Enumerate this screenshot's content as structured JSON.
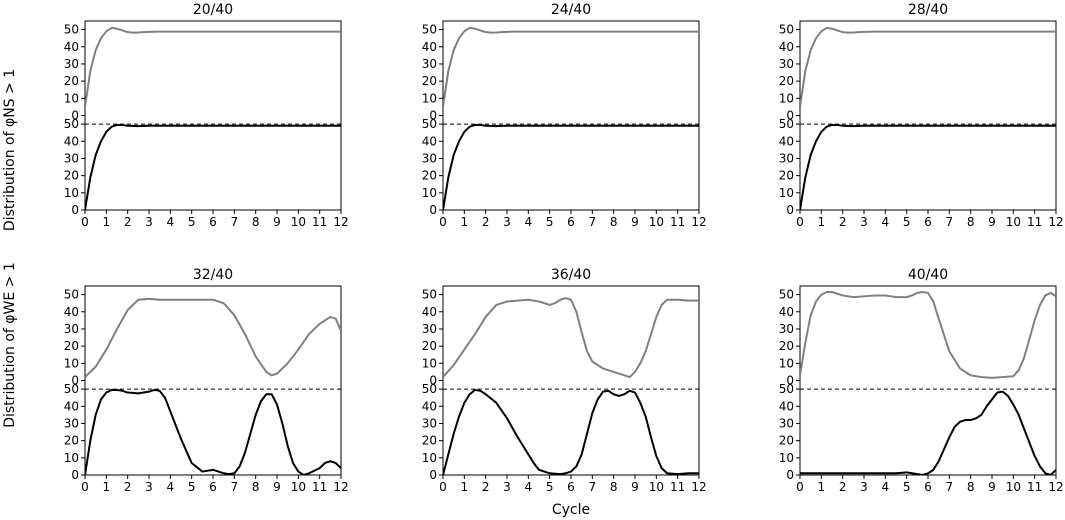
{
  "chart_data": {
    "type": "line",
    "xlabel": "Cycle",
    "ylabel_ns": "Distribution of φNS > 1",
    "ylabel_we": "Distribution of φWE > 1",
    "colors": {
      "ns_line": "#808080",
      "we_line": "#000000",
      "divider": "#000000"
    },
    "x_ticks": [
      0,
      1,
      2,
      3,
      4,
      5,
      6,
      7,
      8,
      9,
      10,
      11,
      12
    ],
    "y_ticks": [
      0,
      10,
      20,
      30,
      40,
      50
    ],
    "xlim": [
      0,
      12
    ],
    "ylim_each_half": [
      0,
      55
    ],
    "divider_value": 50,
    "panels": [
      {
        "title": "20/40",
        "ns": {
          "x": [
            0,
            0.25,
            0.5,
            0.75,
            1,
            1.25,
            1.5,
            1.75,
            2,
            2.25,
            2.5,
            2.75,
            3,
            3.5,
            4,
            5,
            6,
            7,
            8,
            9,
            10,
            11,
            12
          ],
          "y": [
            5,
            26,
            38,
            45,
            49,
            51,
            50.5,
            49.5,
            48.5,
            48.2,
            48.3,
            48.5,
            48.7,
            48.8,
            48.8,
            48.8,
            48.8,
            48.8,
            48.8,
            48.8,
            48.8,
            48.8,
            48.8
          ]
        },
        "we": {
          "x": [
            0,
            0.25,
            0.5,
            0.75,
            1,
            1.25,
            1.5,
            1.75,
            2,
            2.5,
            3,
            4,
            5,
            6,
            7,
            8,
            9,
            10,
            11,
            12
          ],
          "y": [
            0,
            19,
            32,
            40,
            45.5,
            48.5,
            49.5,
            49.5,
            49,
            48.8,
            49,
            49,
            49,
            49,
            49,
            49,
            49,
            49,
            49,
            49
          ]
        }
      },
      {
        "title": "24/40",
        "ns": {
          "x": [
            0,
            0.25,
            0.5,
            0.75,
            1,
            1.25,
            1.5,
            1.75,
            2,
            2.25,
            2.5,
            2.75,
            3,
            3.5,
            4,
            5,
            6,
            7,
            8,
            9,
            10,
            11,
            12
          ],
          "y": [
            5,
            26,
            38,
            45,
            49,
            51,
            50.5,
            49.5,
            48.5,
            48.2,
            48.3,
            48.5,
            48.7,
            48.8,
            48.8,
            48.8,
            48.8,
            48.8,
            48.8,
            48.8,
            48.8,
            48.8,
            48.8
          ]
        },
        "we": {
          "x": [
            0,
            0.25,
            0.5,
            0.75,
            1,
            1.25,
            1.5,
            1.75,
            2,
            2.5,
            3,
            4,
            5,
            6,
            7,
            8,
            9,
            10,
            11,
            12
          ],
          "y": [
            0,
            19,
            32,
            40,
            45.5,
            48.5,
            49.5,
            49.5,
            49,
            48.8,
            49,
            49,
            49,
            49,
            49,
            49,
            49,
            49,
            49,
            49
          ]
        }
      },
      {
        "title": "28/40",
        "ns": {
          "x": [
            0,
            0.25,
            0.5,
            0.75,
            1,
            1.25,
            1.5,
            1.75,
            2,
            2.25,
            2.5,
            2.75,
            3,
            3.5,
            4,
            5,
            6,
            7,
            8,
            9,
            10,
            11,
            12
          ],
          "y": [
            5,
            26,
            38,
            45,
            49,
            51,
            50.5,
            49.5,
            48.5,
            48.2,
            48.3,
            48.5,
            48.7,
            48.8,
            48.8,
            48.8,
            48.8,
            48.8,
            48.8,
            48.8,
            48.8,
            48.8,
            48.8
          ]
        },
        "we": {
          "x": [
            0,
            0.25,
            0.5,
            0.75,
            1,
            1.25,
            1.5,
            1.75,
            2,
            2.5,
            3,
            4,
            5,
            6,
            7,
            8,
            9,
            10,
            11,
            12
          ],
          "y": [
            0,
            19,
            32,
            40,
            45.5,
            48.5,
            49.5,
            49.5,
            49,
            48.8,
            49,
            49,
            49,
            49,
            49,
            49,
            49,
            49,
            49,
            49
          ]
        }
      },
      {
        "title": "32/40",
        "ns": {
          "x": [
            0,
            0.5,
            1,
            1.5,
            2,
            2.5,
            3,
            3.5,
            4,
            4.5,
            5,
            5.5,
            6,
            6.5,
            7,
            7.5,
            8,
            8.5,
            8.75,
            9,
            9.5,
            10,
            10.5,
            11,
            11.5,
            11.75,
            12
          ],
          "y": [
            2,
            8,
            18,
            30,
            41,
            47,
            47.5,
            47,
            47,
            47,
            47,
            47,
            47,
            45,
            38,
            27,
            14,
            5,
            3,
            4,
            10,
            18,
            27,
            33,
            37,
            36,
            29
          ]
        },
        "we": {
          "x": [
            0,
            0.25,
            0.5,
            0.75,
            1,
            1.25,
            1.5,
            1.75,
            2,
            2.5,
            3,
            3.25,
            3.5,
            3.75,
            4,
            4.5,
            5,
            5.5,
            6,
            6.25,
            6.5,
            6.75,
            7,
            7.25,
            7.5,
            7.75,
            8,
            8.25,
            8.5,
            8.75,
            9,
            9.25,
            9.5,
            9.75,
            10,
            10.25,
            10.5,
            11,
            11.25,
            11.5,
            11.75,
            12
          ],
          "y": [
            0,
            20,
            35,
            44,
            48,
            49.5,
            49.5,
            49,
            48,
            47.5,
            48.5,
            49.5,
            49,
            45,
            37,
            21,
            7,
            2,
            3,
            2,
            1,
            0.5,
            1,
            5,
            13,
            24,
            35,
            43,
            47,
            47,
            41,
            30,
            17,
            7,
            2,
            0,
            1,
            4,
            7,
            8,
            7,
            4
          ]
        }
      },
      {
        "title": "36/40",
        "ns": {
          "x": [
            0,
            0.5,
            1,
            1.5,
            2,
            2.5,
            3,
            3.5,
            4,
            4.5,
            5,
            5.25,
            5.5,
            5.75,
            6,
            6.25,
            6.5,
            6.75,
            7,
            7.5,
            8,
            8.5,
            8.75,
            9,
            9.25,
            9.5,
            9.75,
            10,
            10.25,
            10.5,
            11,
            11.5,
            12
          ],
          "y": [
            2,
            9,
            18,
            27,
            37,
            44,
            46,
            46.5,
            47,
            46,
            44,
            45,
            47,
            48,
            47,
            40,
            28,
            17,
            11,
            7,
            5,
            3,
            2,
            5,
            10,
            17,
            27,
            37,
            44,
            47,
            47,
            46.5,
            46.5
          ]
        },
        "we": {
          "x": [
            0,
            0.25,
            0.5,
            0.75,
            1,
            1.25,
            1.5,
            1.75,
            2,
            2.5,
            3,
            3.5,
            4,
            4.25,
            4.5,
            5,
            5.5,
            5.75,
            6,
            6.25,
            6.5,
            6.75,
            7,
            7.25,
            7.5,
            7.75,
            8,
            8.25,
            8.5,
            8.75,
            9,
            9.25,
            9.5,
            9.75,
            10,
            10.25,
            10.5,
            11,
            11.5,
            12
          ],
          "y": [
            0,
            12,
            24,
            34,
            42,
            47,
            49.5,
            49,
            47,
            42,
            33,
            22,
            12,
            7,
            3,
            1,
            0.5,
            1,
            2,
            5,
            12,
            24,
            36,
            44,
            48.5,
            49,
            47,
            46,
            47,
            49,
            48,
            42,
            34,
            22,
            11,
            4,
            1,
            0.5,
            1,
            1
          ]
        }
      },
      {
        "title": "40/40",
        "ns": {
          "x": [
            0,
            0.25,
            0.5,
            0.75,
            1,
            1.25,
            1.5,
            2,
            2.5,
            3,
            3.5,
            4,
            4.5,
            5,
            5.25,
            5.5,
            5.75,
            6,
            6.25,
            6.5,
            7,
            7.5,
            8,
            8.5,
            9,
            9.5,
            10,
            10.25,
            10.5,
            10.75,
            11,
            11.25,
            11.5,
            11.75,
            12
          ],
          "y": [
            3,
            22,
            38,
            46,
            50,
            51.5,
            51.5,
            49.5,
            48.5,
            49,
            49.5,
            49.5,
            48.5,
            48.5,
            49.5,
            51,
            51.5,
            51,
            46,
            36,
            17,
            7,
            3,
            2,
            1.5,
            2,
            2.5,
            6,
            13,
            24,
            35,
            44,
            49.5,
            51,
            49
          ]
        },
        "we": {
          "x": [
            0,
            0.5,
            1,
            1.5,
            2,
            2.5,
            3,
            3.5,
            4,
            4.5,
            5,
            5.25,
            5.5,
            5.75,
            6,
            6.25,
            6.5,
            6.75,
            7,
            7.25,
            7.5,
            7.75,
            8,
            8.25,
            8.5,
            8.75,
            9,
            9.25,
            9.5,
            9.75,
            10,
            10.25,
            10.5,
            10.75,
            11,
            11.25,
            11.5,
            11.75,
            12
          ],
          "y": [
            1,
            1,
            1,
            1,
            1,
            1,
            1,
            1,
            1,
            1,
            1.5,
            1,
            0.5,
            0,
            1,
            3,
            8,
            15,
            22,
            28,
            31,
            32,
            32,
            33,
            35,
            40,
            44,
            48,
            48.5,
            46,
            41,
            35,
            27,
            19,
            11,
            5,
            1,
            0,
            3
          ]
        }
      }
    ]
  }
}
